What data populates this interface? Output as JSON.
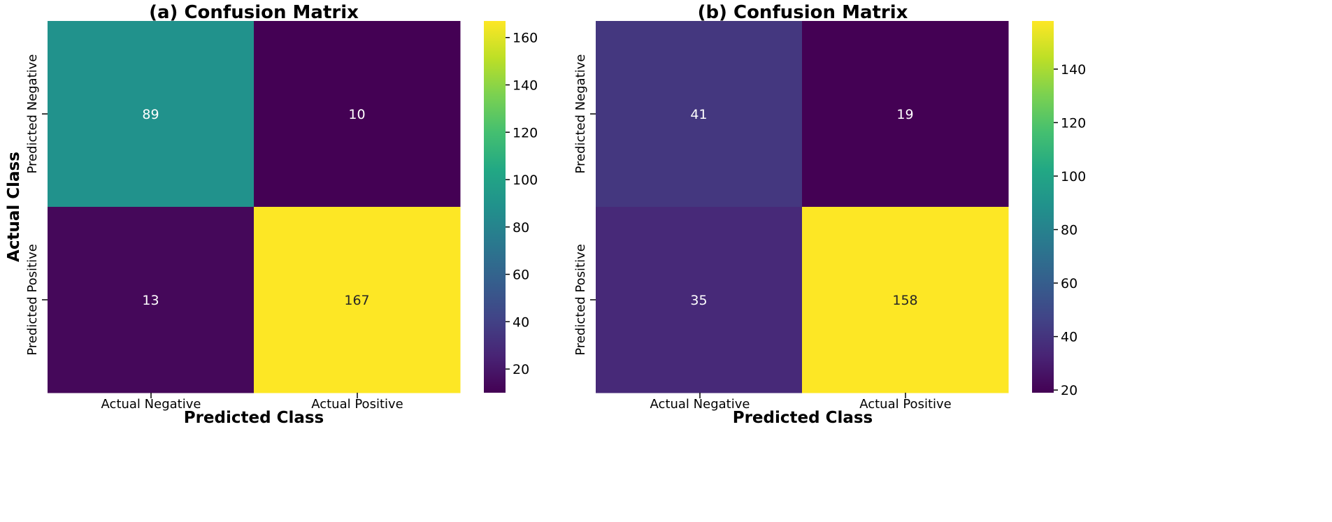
{
  "chart_data": [
    {
      "type": "heatmap",
      "title": "(a) Confusion Matrix",
      "xlabel": "Predicted Class",
      "ylabel": "Actual Class",
      "x_categories": [
        "Actual Negative",
        "Actual Positive"
      ],
      "y_categories": [
        "Predicted Negative",
        "Predicted Positive"
      ],
      "values": [
        [
          89,
          10
        ],
        [
          13,
          167
        ]
      ],
      "colormap": "viridis",
      "colorbar_range": [
        10,
        167
      ],
      "colorbar_ticks": [
        20,
        40,
        60,
        80,
        100,
        120,
        140,
        160
      ]
    },
    {
      "type": "heatmap",
      "title": "(b) Confusion Matrix",
      "xlabel": "Predicted Class",
      "ylabel": "",
      "x_categories": [
        "Actual Negative",
        "Actual Positive"
      ],
      "y_categories": [
        "Predicted Negative",
        "Predicted Positive"
      ],
      "values": [
        [
          41,
          19
        ],
        [
          35,
          158
        ]
      ],
      "colormap": "viridis",
      "colorbar_range": [
        19,
        158
      ],
      "colorbar_ticks": [
        20,
        40,
        60,
        80,
        100,
        120,
        140
      ]
    }
  ]
}
